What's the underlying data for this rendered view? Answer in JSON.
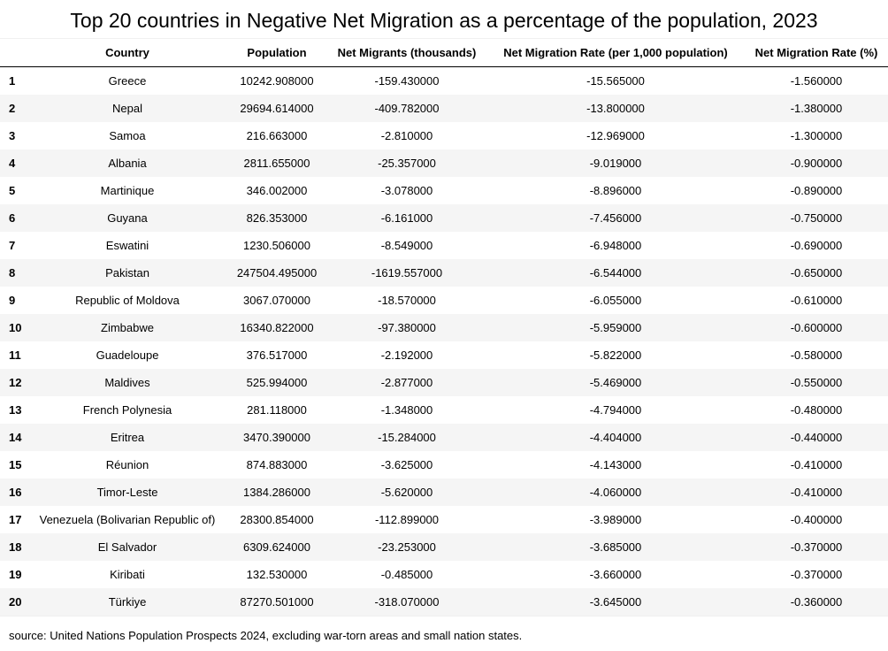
{
  "chart_data": {
    "type": "table",
    "title": "Top 20 countries in Negative Net Migration as a percentage of the population, 2023",
    "columns": [
      "",
      "Country",
      "Population",
      "Net Migrants (thousands)",
      "Net Migration Rate (per 1,000 population)",
      "Net Migration Rate (%)"
    ],
    "rows": [
      [
        "1",
        "Greece",
        "10242.908000",
        "-159.430000",
        "-15.565000",
        "-1.560000"
      ],
      [
        "2",
        "Nepal",
        "29694.614000",
        "-409.782000",
        "-13.800000",
        "-1.380000"
      ],
      [
        "3",
        "Samoa",
        "216.663000",
        "-2.810000",
        "-12.969000",
        "-1.300000"
      ],
      [
        "4",
        "Albania",
        "2811.655000",
        "-25.357000",
        "-9.019000",
        "-0.900000"
      ],
      [
        "5",
        "Martinique",
        "346.002000",
        "-3.078000",
        "-8.896000",
        "-0.890000"
      ],
      [
        "6",
        "Guyana",
        "826.353000",
        "-6.161000",
        "-7.456000",
        "-0.750000"
      ],
      [
        "7",
        "Eswatini",
        "1230.506000",
        "-8.549000",
        "-6.948000",
        "-0.690000"
      ],
      [
        "8",
        "Pakistan",
        "247504.495000",
        "-1619.557000",
        "-6.544000",
        "-0.650000"
      ],
      [
        "9",
        "Republic of Moldova",
        "3067.070000",
        "-18.570000",
        "-6.055000",
        "-0.610000"
      ],
      [
        "10",
        "Zimbabwe",
        "16340.822000",
        "-97.380000",
        "-5.959000",
        "-0.600000"
      ],
      [
        "11",
        "Guadeloupe",
        "376.517000",
        "-2.192000",
        "-5.822000",
        "-0.580000"
      ],
      [
        "12",
        "Maldives",
        "525.994000",
        "-2.877000",
        "-5.469000",
        "-0.550000"
      ],
      [
        "13",
        "French Polynesia",
        "281.118000",
        "-1.348000",
        "-4.794000",
        "-0.480000"
      ],
      [
        "14",
        "Eritrea",
        "3470.390000",
        "-15.284000",
        "-4.404000",
        "-0.440000"
      ],
      [
        "15",
        "Réunion",
        "874.883000",
        "-3.625000",
        "-4.143000",
        "-0.410000"
      ],
      [
        "16",
        "Timor-Leste",
        "1384.286000",
        "-5.620000",
        "-4.060000",
        "-0.410000"
      ],
      [
        "17",
        "Venezuela (Bolivarian Republic of)",
        "28300.854000",
        "-112.899000",
        "-3.989000",
        "-0.400000"
      ],
      [
        "18",
        "El Salvador",
        "6309.624000",
        "-23.253000",
        "-3.685000",
        "-0.370000"
      ],
      [
        "19",
        "Kiribati",
        "132.530000",
        "-0.485000",
        "-3.660000",
        "-0.370000"
      ],
      [
        "20",
        "Türkiye",
        "87270.501000",
        "-318.070000",
        "-3.645000",
        "-0.360000"
      ]
    ],
    "source": "source: United Nations Population Prospects 2024, excluding war-torn areas and small nation states."
  }
}
